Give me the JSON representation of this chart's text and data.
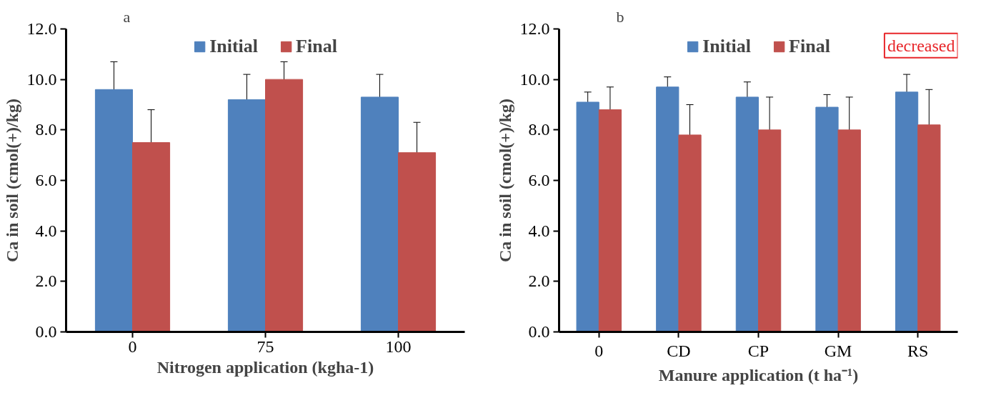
{
  "chart_data": [
    {
      "type": "bar",
      "title": "a",
      "categories": [
        "0",
        "75",
        "100"
      ],
      "xlabel": "Nitrogen application (kgha-1)",
      "ylabel": "Ca in soil (cmol(+)/kg)",
      "ylim": [
        0,
        12
      ],
      "yticks": [
        {
          "value": 0,
          "label": "0.0"
        },
        {
          "value": 2,
          "label": "2.0"
        },
        {
          "value": 4,
          "label": "4.0"
        },
        {
          "value": 6,
          "label": "6.0"
        },
        {
          "value": 8,
          "label": "8.0"
        },
        {
          "value": 10,
          "label": "10.0"
        },
        {
          "value": 12,
          "label": "12.0"
        }
      ],
      "grid": false,
      "legend": "top",
      "series": [
        {
          "name": "Initial",
          "color": "#4f81bd",
          "values": [
            9.6,
            9.2,
            9.3
          ],
          "errors": [
            1.1,
            1.0,
            0.9
          ]
        },
        {
          "name": "Final",
          "color": "#c0504d",
          "values": [
            7.5,
            10.0,
            7.1
          ],
          "errors": [
            1.3,
            0.7,
            1.2
          ]
        }
      ]
    },
    {
      "type": "bar",
      "title": "b",
      "categories": [
        "0",
        "CD",
        "CP",
        "GM",
        "RS"
      ],
      "xlabel": "Manure application (t ha⁻¹)",
      "ylabel": "Ca in soil (cmol(+)/kg)",
      "ylim": [
        0,
        12
      ],
      "yticks": [
        {
          "value": 0,
          "label": "0.0"
        },
        {
          "value": 2,
          "label": "2.0"
        },
        {
          "value": 4,
          "label": "4.0"
        },
        {
          "value": 6,
          "label": "6.0"
        },
        {
          "value": 8,
          "label": "8.0"
        },
        {
          "value": 10,
          "label": "10.0"
        },
        {
          "value": 12,
          "label": "12.0"
        }
      ],
      "grid": false,
      "legend": "top",
      "annotations": [
        "decreased"
      ],
      "series": [
        {
          "name": "Initial",
          "color": "#4f81bd",
          "values": [
            9.1,
            9.7,
            9.3,
            8.9,
            9.5
          ],
          "errors": [
            0.4,
            0.4,
            0.6,
            0.5,
            0.7
          ]
        },
        {
          "name": "Final",
          "color": "#c0504d",
          "values": [
            8.8,
            7.8,
            8.0,
            8.0,
            8.2
          ],
          "errors": [
            0.9,
            1.2,
            1.3,
            1.3,
            1.4
          ]
        }
      ]
    }
  ]
}
